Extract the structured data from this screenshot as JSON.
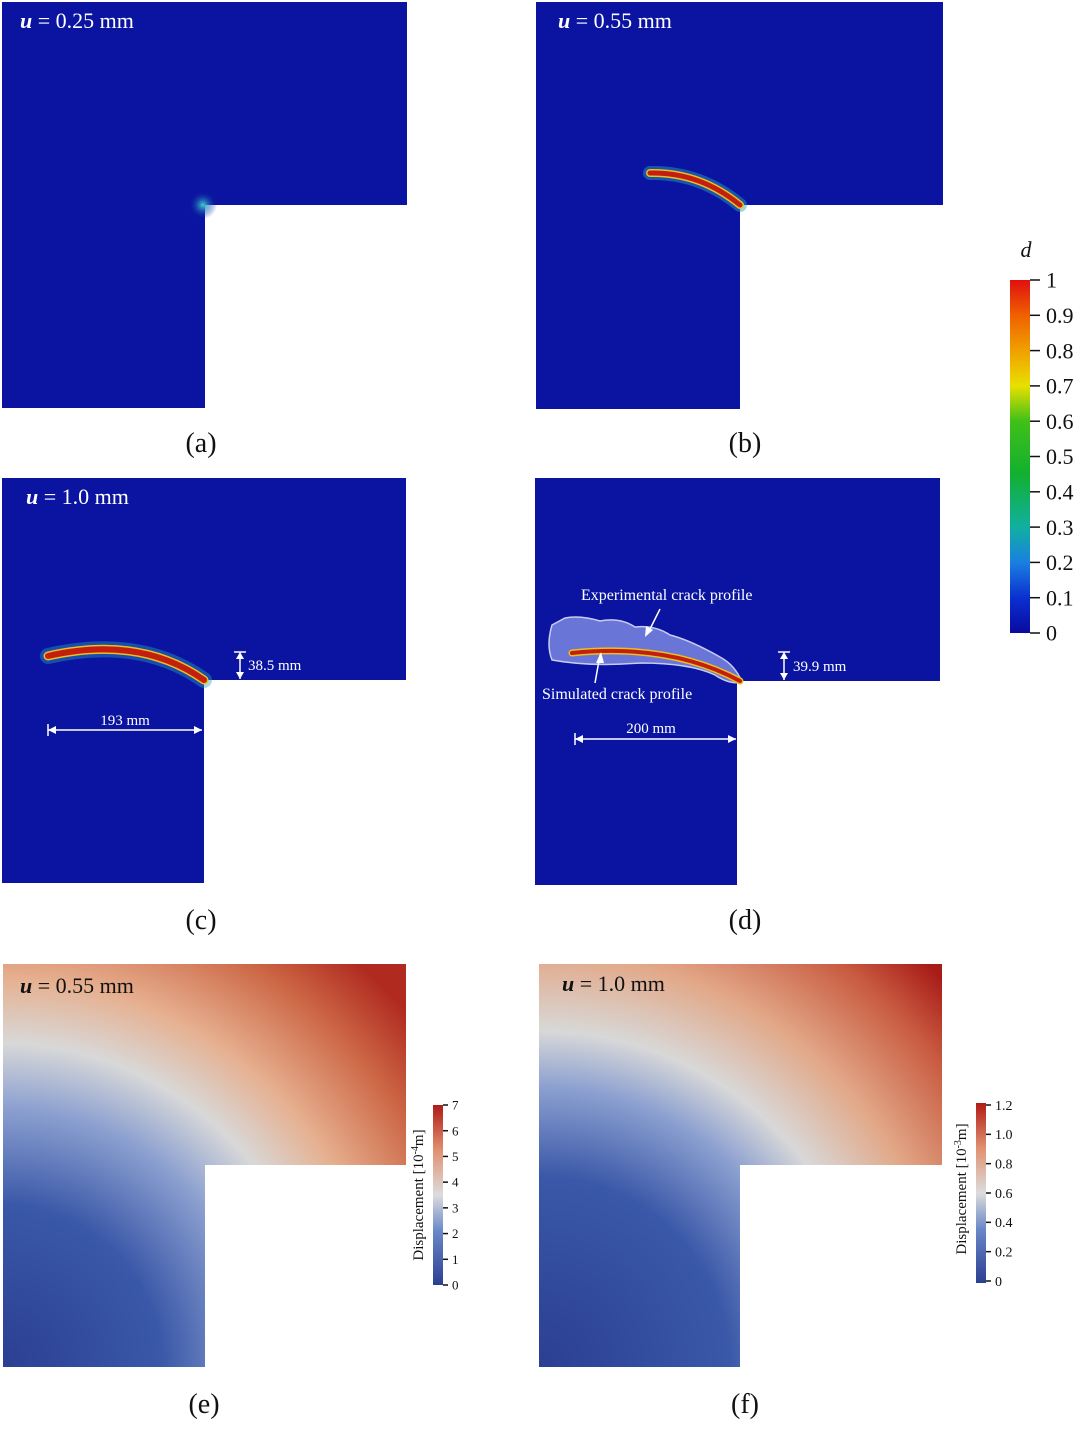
{
  "panels": {
    "a": {
      "label": "(a)",
      "load": "0.25 mm"
    },
    "b": {
      "label": "(b)",
      "load": "0.55 mm"
    },
    "c": {
      "label": "(c)",
      "load": "1.0 mm",
      "crack_height": "38.5 mm",
      "crack_length": "193 mm"
    },
    "d": {
      "label": "(d)",
      "crack_height": "39.9 mm",
      "crack_length": "200 mm",
      "experimental_label": "Experimental  crack profile",
      "simulated_label": "Simulated crack profile"
    },
    "e": {
      "label": "(e)",
      "load": "0.55 mm",
      "cbar_title": "Displacement [10",
      "cbar_exp": "-4",
      "cbar_unit": "m]",
      "cbar_ticks": [
        "0",
        "1",
        "2",
        "3",
        "4",
        "5",
        "6",
        "7"
      ]
    },
    "f": {
      "label": "(f)",
      "load": "1.0 mm",
      "cbar_title": "Displacement [10",
      "cbar_exp": "-3",
      "cbar_unit": "m]",
      "cbar_ticks": [
        "0",
        "0.2",
        "0.4",
        "0.6",
        "0.8",
        "1.0",
        "1.2"
      ]
    }
  },
  "load_symbol": "u",
  "damage_colorbar": {
    "title": "d",
    "ticks": [
      "0",
      "0.1",
      "0.2",
      "0.3",
      "0.4",
      "0.5",
      "0.6",
      "0.7",
      "0.8",
      "0.9",
      "1"
    ]
  },
  "colors": {
    "field_blue": "#0a14a0",
    "crack_red": "#c41e10",
    "disp_low": "#2f4a9a",
    "disp_high": "#b8281e"
  }
}
